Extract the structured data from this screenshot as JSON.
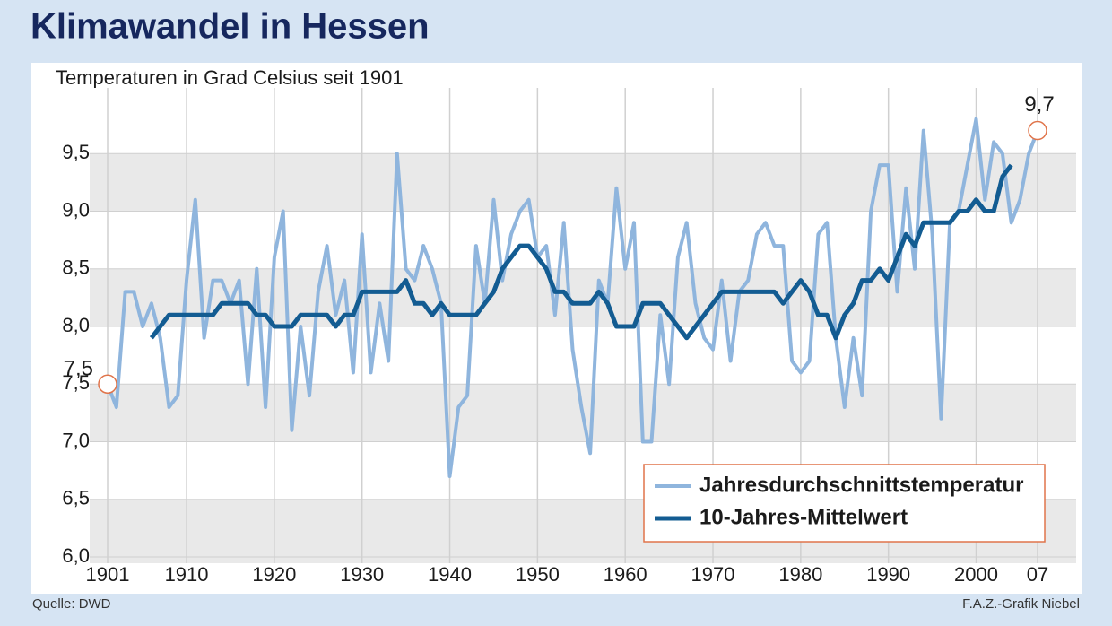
{
  "chart_data": {
    "type": "line",
    "title": "Klimawandel in Hessen",
    "subtitle": "Temperaturen in Grad Celsius seit 1901",
    "source": "Quelle: DWD",
    "credit": "F.A.Z.-Grafik Niebel",
    "x": [
      1901,
      1902,
      1903,
      1904,
      1905,
      1906,
      1907,
      1908,
      1909,
      1910,
      1911,
      1912,
      1913,
      1914,
      1915,
      1916,
      1917,
      1918,
      1919,
      1920,
      1921,
      1922,
      1923,
      1924,
      1925,
      1926,
      1927,
      1928,
      1929,
      1930,
      1931,
      1932,
      1933,
      1934,
      1935,
      1936,
      1937,
      1938,
      1939,
      1940,
      1941,
      1942,
      1943,
      1944,
      1945,
      1946,
      1947,
      1948,
      1949,
      1950,
      1951,
      1952,
      1953,
      1954,
      1955,
      1956,
      1957,
      1958,
      1959,
      1960,
      1961,
      1962,
      1963,
      1964,
      1965,
      1966,
      1967,
      1968,
      1969,
      1970,
      1971,
      1972,
      1973,
      1974,
      1975,
      1976,
      1977,
      1978,
      1979,
      1980,
      1981,
      1982,
      1983,
      1984,
      1985,
      1986,
      1987,
      1988,
      1989,
      1990,
      1991,
      1992,
      1993,
      1994,
      1995,
      1996,
      1997,
      1998,
      1999,
      2000,
      2001,
      2002,
      2003,
      2004,
      2005,
      2006,
      2007
    ],
    "series": [
      {
        "name": "Jahresdurchschnittstemperatur",
        "color": "#8fb5dd",
        "width": 4,
        "values": [
          7.5,
          7.3,
          8.3,
          8.3,
          8.0,
          8.2,
          7.9,
          7.3,
          7.4,
          8.4,
          9.1,
          7.9,
          8.4,
          8.4,
          8.2,
          8.4,
          7.5,
          8.5,
          7.3,
          8.6,
          9.0,
          7.1,
          8.0,
          7.4,
          8.3,
          8.7,
          8.1,
          8.4,
          7.6,
          8.8,
          7.6,
          8.2,
          7.7,
          9.5,
          8.5,
          8.4,
          8.7,
          8.5,
          8.2,
          6.7,
          7.3,
          7.4,
          8.7,
          8.2,
          9.1,
          8.4,
          8.8,
          9.0,
          9.1,
          8.6,
          8.7,
          8.1,
          8.9,
          7.8,
          7.3,
          6.9,
          8.4,
          8.2,
          9.2,
          8.5,
          8.9,
          7.0,
          7.0,
          8.1,
          7.5,
          8.6,
          8.9,
          8.2,
          7.9,
          7.8,
          8.4,
          7.7,
          8.3,
          8.4,
          8.8,
          8.9,
          8.7,
          8.7,
          7.7,
          7.6,
          7.7,
          8.8,
          8.9,
          7.9,
          7.3,
          7.9,
          7.4,
          9.0,
          9.4,
          9.4,
          8.3,
          9.2,
          8.5,
          9.7,
          8.8,
          7.2,
          8.9,
          9.0,
          9.4,
          9.8,
          9.1,
          9.6,
          9.5,
          8.9,
          9.1,
          9.5,
          9.7
        ]
      },
      {
        "name": "10-Jahres-Mittelwert",
        "color": "#135c92",
        "width": 5,
        "values": [
          null,
          null,
          null,
          null,
          null,
          7.9,
          8.0,
          8.1,
          8.1,
          8.1,
          8.1,
          8.1,
          8.1,
          8.2,
          8.2,
          8.2,
          8.2,
          8.1,
          8.1,
          8.0,
          8.0,
          8.0,
          8.1,
          8.1,
          8.1,
          8.1,
          8.0,
          8.1,
          8.1,
          8.3,
          8.3,
          8.3,
          8.3,
          8.3,
          8.4,
          8.2,
          8.2,
          8.1,
          8.2,
          8.1,
          8.1,
          8.1,
          8.1,
          8.2,
          8.3,
          8.5,
          8.6,
          8.7,
          8.7,
          8.6,
          8.5,
          8.3,
          8.3,
          8.2,
          8.2,
          8.2,
          8.3,
          8.2,
          8.0,
          8.0,
          8.0,
          8.2,
          8.2,
          8.2,
          8.1,
          8.0,
          7.9,
          8.0,
          8.1,
          8.2,
          8.3,
          8.3,
          8.3,
          8.3,
          8.3,
          8.3,
          8.3,
          8.2,
          8.3,
          8.4,
          8.3,
          8.1,
          8.1,
          7.9,
          8.1,
          8.2,
          8.4,
          8.4,
          8.5,
          8.4,
          8.6,
          8.8,
          8.7,
          8.9,
          8.9,
          8.9,
          8.9,
          9.0,
          9.0,
          9.1,
          9.0,
          9.0,
          9.3,
          9.4,
          null,
          null,
          null
        ]
      }
    ],
    "xlim": [
      1901,
      2007
    ],
    "ylim": [
      6.0,
      10.0
    ],
    "xticks": [
      1901,
      1910,
      1920,
      1930,
      1940,
      1950,
      1960,
      1970,
      1980,
      1990,
      2000,
      {
        "value": 2007,
        "label": "07"
      }
    ],
    "yticks": [
      {
        "value": 6.0,
        "label": "6,0"
      },
      {
        "value": 6.5,
        "label": "6,5"
      },
      {
        "value": 7.0,
        "label": "7,0"
      },
      {
        "value": 7.5,
        "label": "7,5"
      },
      {
        "value": 8.0,
        "label": "8,0"
      },
      {
        "value": 8.5,
        "label": "8,5"
      },
      {
        "value": 9.0,
        "label": "9,0"
      },
      {
        "value": 9.5,
        "label": "9,5"
      }
    ],
    "annotations": [
      {
        "text": "7,5",
        "x": 1901,
        "y": 7.5
      },
      {
        "text": "9,7",
        "x": 2007,
        "y": 9.7
      }
    ],
    "annotation_color": "#e0744a",
    "grid": true,
    "legend": "lower right"
  }
}
